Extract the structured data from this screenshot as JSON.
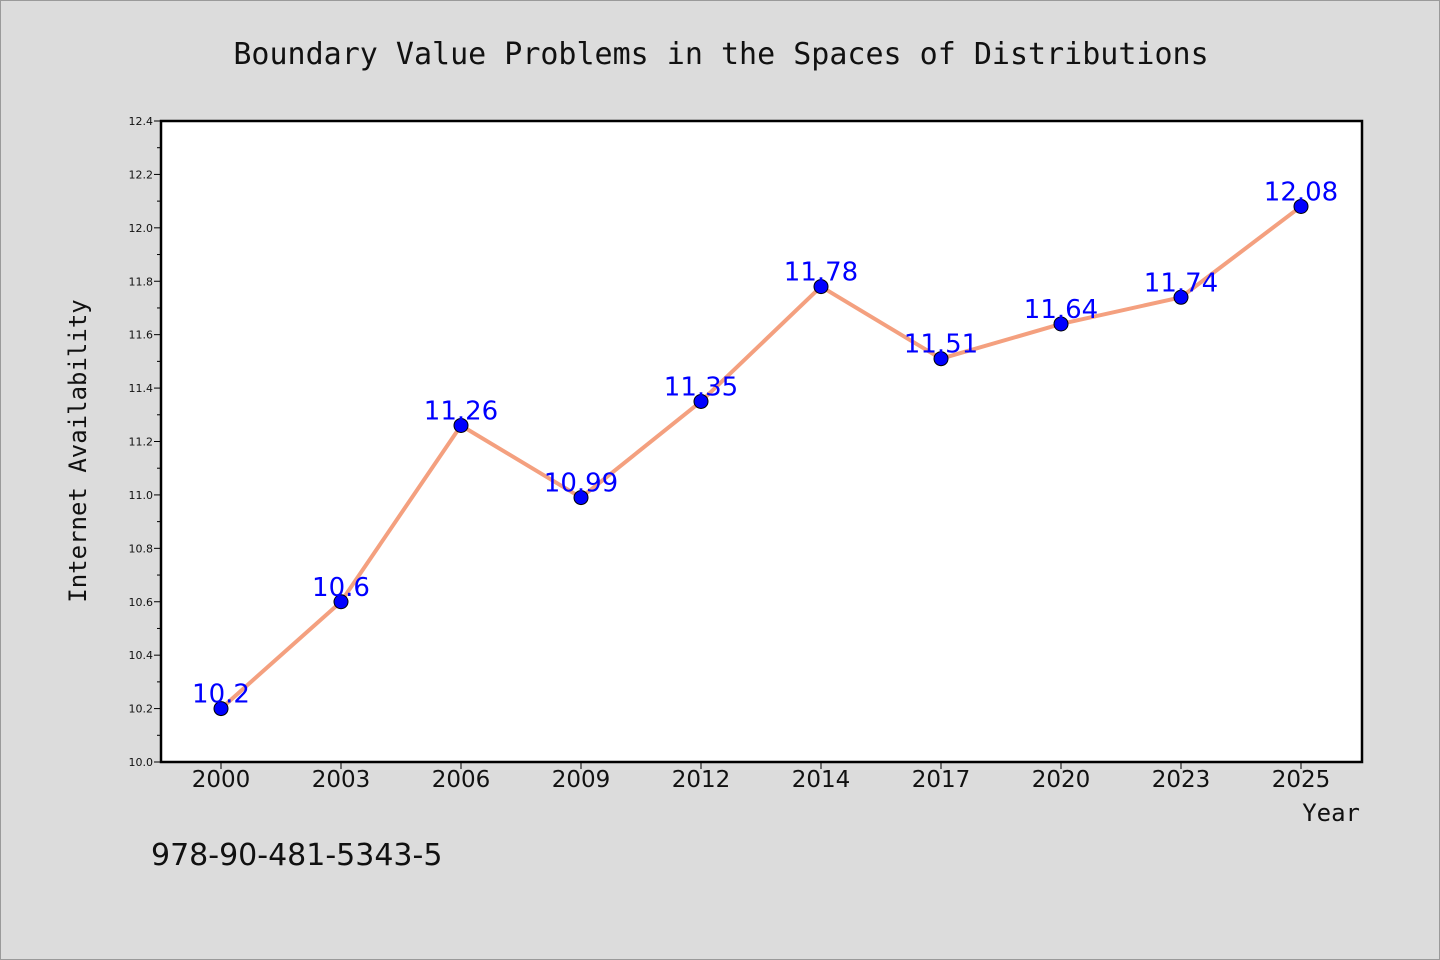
{
  "chart_data": {
    "type": "line",
    "title": "Boundary Value Problems in the Spaces of Distributions",
    "xlabel": "Year",
    "ylabel": "Internet Availability",
    "categories": [
      "2000",
      "2003",
      "2006",
      "2009",
      "2012",
      "2014",
      "2017",
      "2020",
      "2023",
      "2025"
    ],
    "values": [
      10.2,
      10.6,
      11.26,
      10.99,
      11.35,
      11.78,
      11.51,
      11.64,
      11.74,
      12.08
    ],
    "data_labels": [
      "10.2",
      "10.6",
      "11.26",
      "10.99",
      "11.35",
      "11.78",
      "11.51",
      "11.64",
      "11.74",
      "12.08"
    ],
    "ylim": [
      10.0,
      12.4
    ],
    "yticks": [
      "10.0",
      "10.2",
      "10.4",
      "10.6",
      "10.8",
      "11.0",
      "11.2",
      "11.4",
      "11.6",
      "11.8",
      "12.0",
      "12.2",
      "12.4"
    ],
    "grid": false,
    "legend": "none",
    "line_color": "#f4a07f",
    "marker_color": "#0000ff",
    "label_color": "#0000ff"
  },
  "footer": {
    "isbn": "978-90-481-5343-5"
  }
}
